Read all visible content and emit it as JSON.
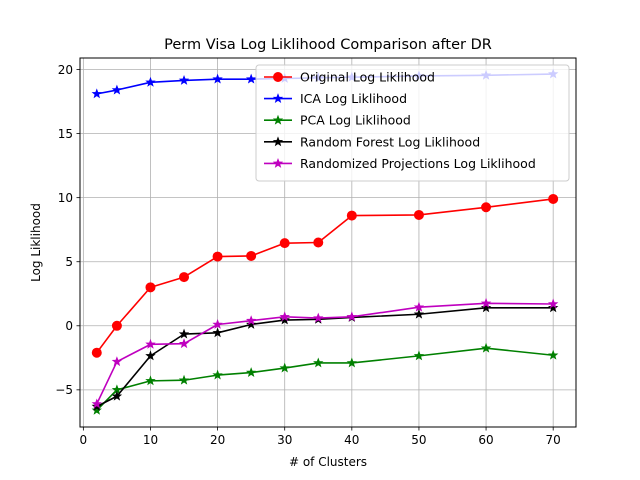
{
  "chart_data": {
    "type": "line",
    "title": "Perm Visa Log Liklihood Comparison after DR",
    "xlabel": "# of Clusters",
    "ylabel": "Log Liklihood",
    "xlim": [
      -0.5,
      73.4
    ],
    "ylim": [
      -7.9,
      20.9
    ],
    "xticks": [
      0,
      10,
      20,
      30,
      40,
      50,
      60,
      70
    ],
    "yticks": [
      -5,
      0,
      5,
      10,
      15,
      20
    ],
    "grid": true,
    "legend_position": "upper-right",
    "series": [
      {
        "name": "Original Log Liklihood",
        "color": "#ff0000",
        "marker": "circle",
        "x": [
          2,
          5,
          10,
          15,
          20,
          25,
          30,
          35,
          40,
          50,
          60,
          70
        ],
        "y": [
          -2.1,
          0.0,
          3.0,
          3.8,
          5.4,
          5.45,
          6.45,
          6.5,
          8.6,
          8.65,
          9.25,
          9.9
        ]
      },
      {
        "name": "ICA Log Liklihood",
        "color": "#0000ff",
        "marker": "star",
        "x": [
          2,
          5,
          10,
          15,
          20,
          25,
          30,
          35,
          40,
          50,
          60,
          70
        ],
        "y": [
          18.1,
          18.4,
          19.0,
          19.15,
          19.25,
          19.25,
          19.3,
          19.35,
          19.4,
          19.5,
          19.55,
          19.65
        ]
      },
      {
        "name": "PCA Log Liklihood",
        "color": "#008000",
        "marker": "star",
        "x": [
          2,
          5,
          10,
          15,
          20,
          25,
          30,
          35,
          40,
          50,
          60,
          70
        ],
        "y": [
          -6.6,
          -5.0,
          -4.3,
          -4.25,
          -3.85,
          -3.65,
          -3.3,
          -2.9,
          -2.9,
          -2.35,
          -1.75,
          -2.3
        ]
      },
      {
        "name": "Random Forest Log Liklihood",
        "color": "#000000",
        "marker": "star",
        "x": [
          2,
          5,
          10,
          15,
          20,
          25,
          30,
          35,
          40,
          50,
          60,
          70
        ],
        "y": [
          -6.3,
          -5.5,
          -2.35,
          -0.65,
          -0.55,
          0.1,
          0.45,
          0.5,
          0.65,
          0.9,
          1.4,
          1.4
        ]
      },
      {
        "name": "Randomized Projections Log Liklihood",
        "color": "#bf00bf",
        "marker": "star",
        "x": [
          2,
          5,
          10,
          15,
          20,
          25,
          30,
          35,
          40,
          50,
          60,
          70
        ],
        "y": [
          -6.1,
          -2.8,
          -1.45,
          -1.4,
          0.1,
          0.4,
          0.7,
          0.6,
          0.7,
          1.45,
          1.75,
          1.7
        ]
      }
    ]
  }
}
